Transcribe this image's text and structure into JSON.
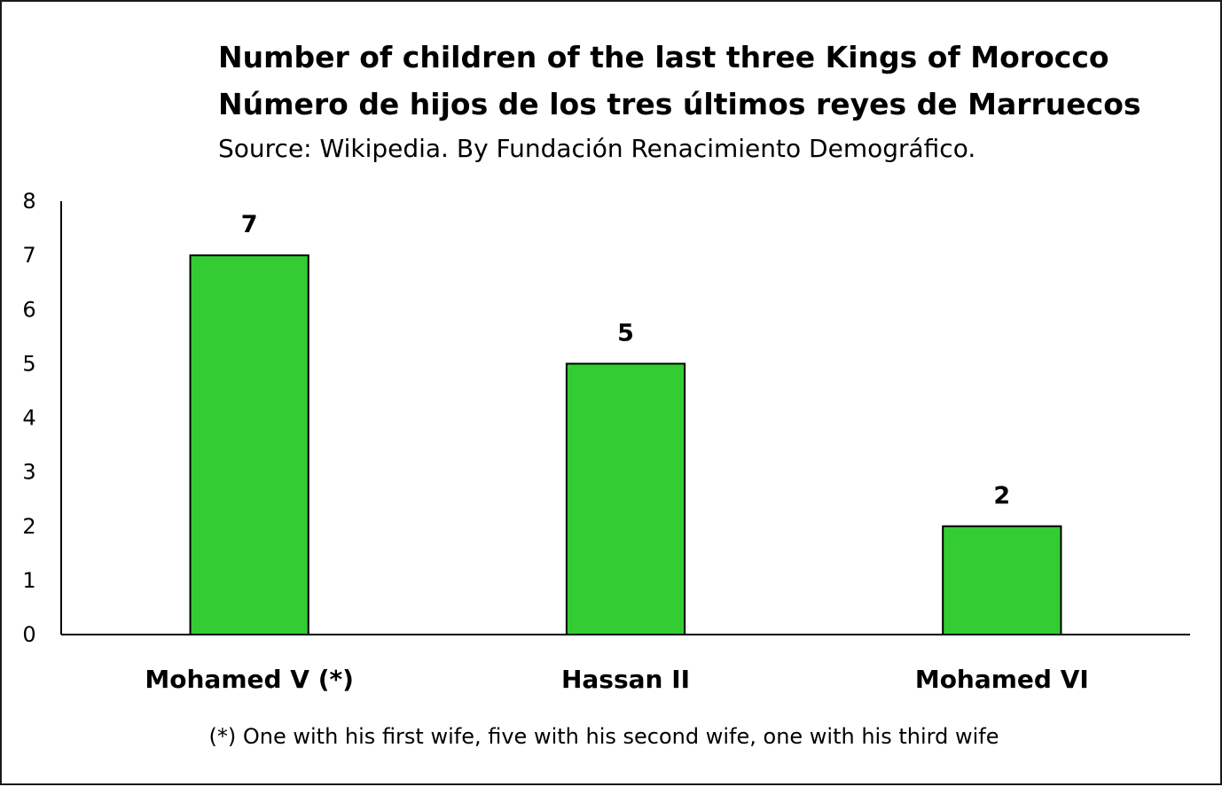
{
  "chart_data": {
    "type": "bar",
    "title": "Number of children of the last three Kings of Morocco",
    "title_es": "Número de hijos de los tres últimos reyes de Marruecos",
    "subtitle": "Source: Wikipedia. By Fundación Renacimiento Demográfico.",
    "categories": [
      "Mohamed V (*)",
      "Hassan II",
      "Mohamed VI"
    ],
    "values": [
      7,
      5,
      2
    ],
    "data_labels": [
      "7",
      "5",
      "2"
    ],
    "yticks": [
      "0",
      "1",
      "2",
      "3",
      "4",
      "5",
      "6",
      "7",
      "8"
    ],
    "ylim": [
      0,
      8
    ],
    "xlabel": "",
    "ylabel": "",
    "grid": false,
    "legend": "none",
    "bar_color": "#33cc33",
    "bar_edge_color": "#000000",
    "footnote": "(*)  One with his first wife, five with his second wife, one with his third wife"
  }
}
